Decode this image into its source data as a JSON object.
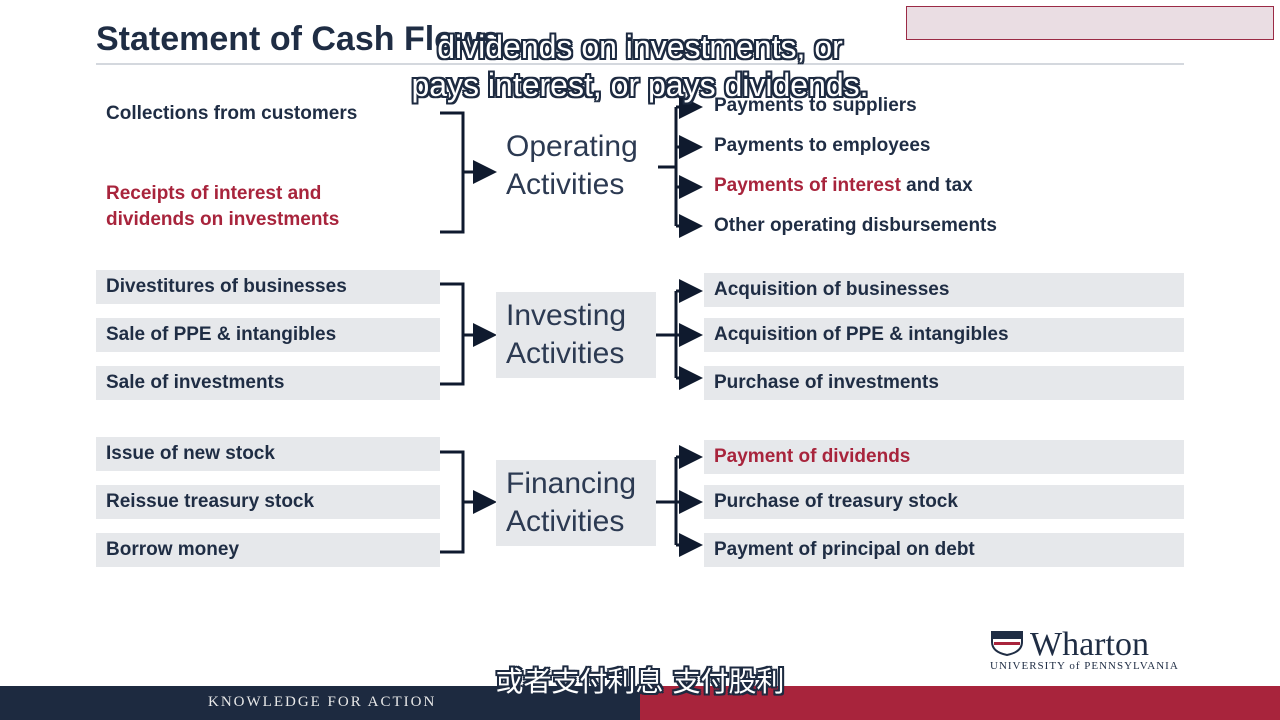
{
  "title": "Statement of Cash Flows",
  "caption_lines": [
    "dividends on investments, or",
    "pays interest, or pays dividends."
  ],
  "subtitle_cn": "或者支付利息 支付股利",
  "footer_text": "KNOWLEDGE FOR ACTION",
  "logo": {
    "word": "Wharton",
    "sub": "UNIVERSITY of PENNSYLVANIA"
  },
  "operating": {
    "center_line1": "Operating",
    "center_line2": "Activities",
    "inflows": [
      "Collections from customers",
      "Receipts of interest and",
      "dividends on investments"
    ],
    "outflows": [
      "Payments to suppliers",
      "Payments to employees",
      "Payments of interest",
      " and tax",
      "Other operating disbursements"
    ]
  },
  "investing": {
    "center_line1": "Investing",
    "center_line2": "Activities",
    "inflows": [
      "Divestitures of businesses",
      "Sale of PPE & intangibles",
      "Sale of investments"
    ],
    "outflows": [
      "Acquisition of businesses",
      "Acquisition of PPE & intangibles",
      "Purchase of investments"
    ]
  },
  "financing": {
    "center_line1": "Financing",
    "center_line2": "Activities",
    "inflows": [
      "Issue of new stock",
      "Reissue treasury stock",
      "Borrow money"
    ],
    "outflows": [
      "Payment of dividends",
      "Purchase of treasury stock",
      "Payment of principal on debt"
    ]
  },
  "colors": {
    "navy": "#1f2d44",
    "red": "#a8243c",
    "box": "#e6e8eb"
  }
}
